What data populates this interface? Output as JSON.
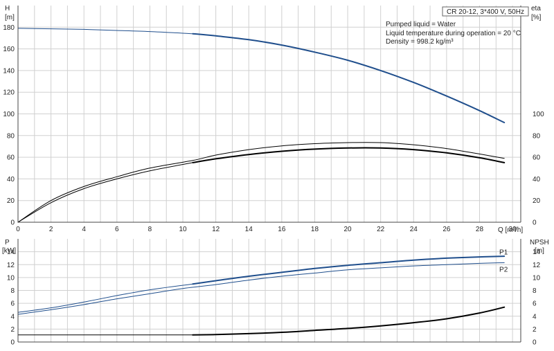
{
  "chart_data": [
    {
      "type": "line",
      "title": "CR 20-12, 3*400 V, 50Hz",
      "info_lines": [
        "Pumped liquid = Water",
        "Liquid temperature during operation = 20 °C",
        "Density = 998.2 kg/m³"
      ],
      "xlabel": "Q [m³/h]",
      "ylabel_left": [
        "H",
        "[m]"
      ],
      "ylabel_right": [
        "eta",
        "[%]"
      ],
      "xlim": [
        0,
        30.5
      ],
      "ylim_left": [
        0,
        200
      ],
      "ylim_right": [
        0,
        200
      ],
      "x_ticks": [
        0,
        2,
        4,
        6,
        8,
        10,
        12,
        14,
        16,
        18,
        20,
        22,
        24,
        26,
        28,
        30
      ],
      "y_ticks_left": [
        0,
        20,
        40,
        60,
        80,
        100,
        120,
        140,
        160,
        180
      ],
      "y_ticks_right": [
        0,
        20,
        40,
        60,
        80,
        100
      ],
      "grid": true,
      "series": [
        {
          "axis": "left",
          "color": "#1f4e8c",
          "width": 1,
          "x": [
            0,
            2,
            4,
            6,
            8,
            10.6
          ],
          "y": [
            179,
            178.5,
            178,
            177,
            176,
            174
          ]
        },
        {
          "axis": "left",
          "color": "#1f4e8c",
          "width": 2,
          "x": [
            10.6,
            12,
            14,
            16,
            18,
            20,
            22,
            24,
            26,
            28,
            29.5
          ],
          "y": [
            174,
            172,
            168.5,
            163.5,
            157,
            149.5,
            140,
            129,
            116.5,
            103,
            92
          ]
        },
        {
          "axis": "right",
          "color": "#000000",
          "width": 1,
          "x": [
            0,
            2,
            4,
            6,
            8,
            10.6,
            12,
            14,
            16,
            18,
            20,
            22,
            24,
            26,
            28,
            29.5
          ],
          "y": [
            0,
            20,
            33,
            42,
            50,
            57,
            62,
            67,
            70.5,
            72.5,
            73.5,
            73.5,
            71.5,
            68,
            63,
            59
          ]
        },
        {
          "axis": "right",
          "color": "#000000",
          "width": 1,
          "x": [
            0,
            2,
            4,
            6,
            8,
            10.6
          ],
          "y": [
            0,
            18,
            31,
            40,
            47.5,
            55
          ]
        },
        {
          "axis": "right",
          "color": "#000000",
          "width": 2,
          "x": [
            10.6,
            12,
            14,
            16,
            18,
            20,
            22,
            24,
            26,
            28,
            29.5
          ],
          "y": [
            55,
            58.5,
            62.5,
            65.5,
            67.5,
            68.5,
            68.5,
            67,
            64,
            59.5,
            55
          ]
        }
      ]
    },
    {
      "type": "line",
      "xlim": [
        0,
        30.5
      ],
      "ylabel_left": [
        "P",
        "[kW]"
      ],
      "ylabel_right": [
        "NPSH",
        "[m]"
      ],
      "ylim_left": [
        0,
        16
      ],
      "ylim_right": [
        0,
        16
      ],
      "y_ticks_left": [
        0,
        2,
        4,
        6,
        8,
        10,
        12,
        14
      ],
      "y_ticks_right": [
        0,
        2,
        4,
        6,
        8,
        10,
        12,
        14
      ],
      "grid": true,
      "labels": [
        {
          "text": "P1",
          "x": 29.2,
          "y": 13.9
        },
        {
          "text": "P2",
          "x": 29.2,
          "y": 11.2
        }
      ],
      "series": [
        {
          "axis": "left",
          "color": "#1f4e8c",
          "width": 1,
          "x": [
            0,
            2,
            4,
            6,
            8,
            10.6
          ],
          "y": [
            4.6,
            5.3,
            6.2,
            7.2,
            8.1,
            9.0
          ]
        },
        {
          "axis": "left",
          "color": "#1f4e8c",
          "width": 2,
          "x": [
            10.6,
            12,
            14,
            16,
            18,
            20,
            22,
            24,
            26,
            28,
            29.5
          ],
          "y": [
            9.0,
            9.5,
            10.2,
            10.8,
            11.4,
            11.9,
            12.3,
            12.7,
            13.0,
            13.2,
            13.3
          ]
        },
        {
          "axis": "left",
          "color": "#1f4e8c",
          "width": 1,
          "x": [
            0,
            2,
            4,
            6,
            8,
            10,
            12,
            14,
            16,
            18,
            20,
            22,
            24,
            26,
            28,
            29.5
          ],
          "y": [
            4.3,
            5.0,
            5.8,
            6.7,
            7.5,
            8.3,
            8.9,
            9.6,
            10.2,
            10.7,
            11.2,
            11.5,
            11.8,
            12.0,
            12.2,
            12.3
          ]
        },
        {
          "axis": "right",
          "color": "#000000",
          "width": 1,
          "x": [
            0,
            10.6
          ],
          "y": [
            1.1,
            1.1
          ]
        },
        {
          "axis": "right",
          "color": "#000000",
          "width": 2,
          "x": [
            10.6,
            12,
            14,
            16,
            18,
            20,
            22,
            24,
            26,
            28,
            29.5
          ],
          "y": [
            1.1,
            1.15,
            1.3,
            1.5,
            1.8,
            2.1,
            2.5,
            3.0,
            3.6,
            4.5,
            5.4
          ]
        }
      ]
    }
  ]
}
